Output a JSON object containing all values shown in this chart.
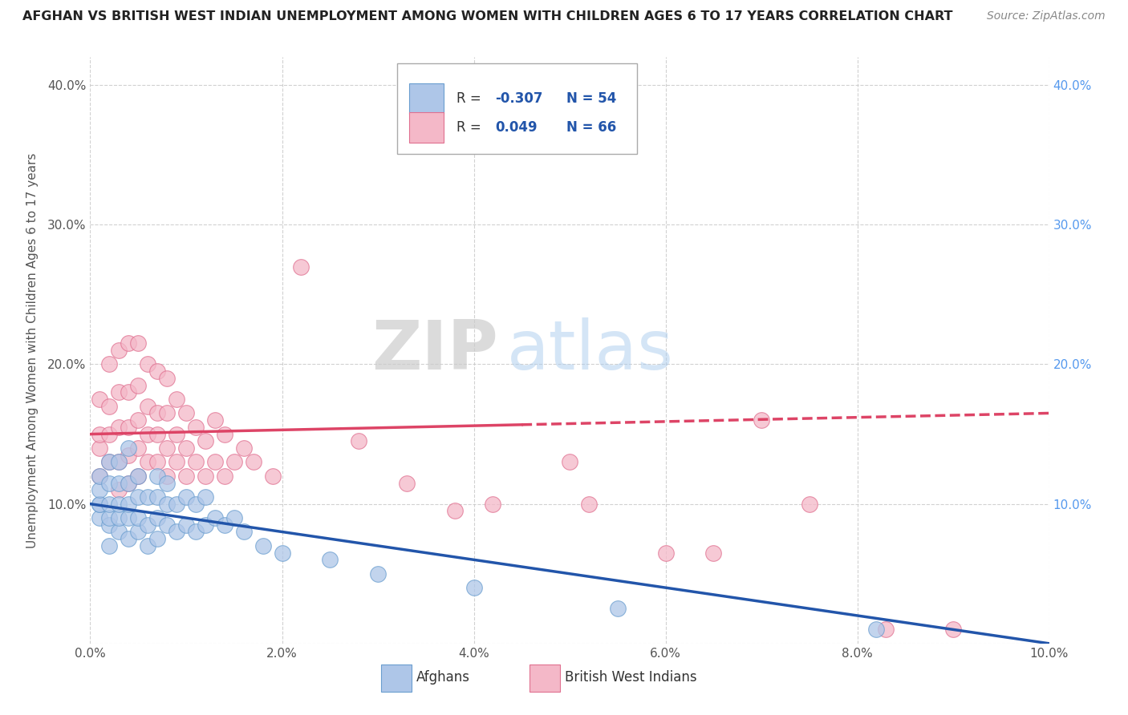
{
  "title": "AFGHAN VS BRITISH WEST INDIAN UNEMPLOYMENT AMONG WOMEN WITH CHILDREN AGES 6 TO 17 YEARS CORRELATION CHART",
  "source": "Source: ZipAtlas.com",
  "ylabel": "Unemployment Among Women with Children Ages 6 to 17 years",
  "xlim": [
    0.0,
    0.1
  ],
  "ylim": [
    0.0,
    0.42
  ],
  "xtick_vals": [
    0.0,
    0.02,
    0.04,
    0.06,
    0.08,
    0.1
  ],
  "xtick_labels": [
    "0.0%",
    "2.0%",
    "4.0%",
    "6.0%",
    "8.0%",
    "10.0%"
  ],
  "ytick_vals": [
    0.0,
    0.1,
    0.2,
    0.3,
    0.4
  ],
  "ytick_labels": [
    "",
    "10.0%",
    "20.0%",
    "30.0%",
    "40.0%"
  ],
  "legend_r_afghan": "-0.307",
  "legend_n_afghan": "54",
  "legend_r_bwi": "0.049",
  "legend_n_bwi": "66",
  "afghan_color": "#aec6e8",
  "afghan_edge": "#6a9ecf",
  "bwi_color": "#f4b8c8",
  "bwi_edge": "#e07090",
  "afghan_line_color": "#2255aa",
  "bwi_line_color": "#dd4466",
  "background_color": "#ffffff",
  "grid_color": "#cccccc",
  "watermark_zip": "ZIP",
  "watermark_atlas": "atlas",
  "afghan_scatter_x": [
    0.001,
    0.001,
    0.001,
    0.001,
    0.001,
    0.002,
    0.002,
    0.002,
    0.002,
    0.002,
    0.002,
    0.003,
    0.003,
    0.003,
    0.003,
    0.003,
    0.004,
    0.004,
    0.004,
    0.004,
    0.004,
    0.005,
    0.005,
    0.005,
    0.005,
    0.006,
    0.006,
    0.006,
    0.007,
    0.007,
    0.007,
    0.007,
    0.008,
    0.008,
    0.008,
    0.009,
    0.009,
    0.01,
    0.01,
    0.011,
    0.011,
    0.012,
    0.012,
    0.013,
    0.014,
    0.015,
    0.016,
    0.018,
    0.02,
    0.025,
    0.03,
    0.04,
    0.055,
    0.082
  ],
  "afghan_scatter_y": [
    0.09,
    0.1,
    0.1,
    0.11,
    0.12,
    0.07,
    0.085,
    0.09,
    0.1,
    0.115,
    0.13,
    0.08,
    0.09,
    0.1,
    0.115,
    0.13,
    0.075,
    0.09,
    0.1,
    0.115,
    0.14,
    0.08,
    0.09,
    0.105,
    0.12,
    0.07,
    0.085,
    0.105,
    0.075,
    0.09,
    0.105,
    0.12,
    0.085,
    0.1,
    0.115,
    0.08,
    0.1,
    0.085,
    0.105,
    0.08,
    0.1,
    0.085,
    0.105,
    0.09,
    0.085,
    0.09,
    0.08,
    0.07,
    0.065,
    0.06,
    0.05,
    0.04,
    0.025,
    0.01
  ],
  "bwi_scatter_x": [
    0.001,
    0.001,
    0.001,
    0.001,
    0.002,
    0.002,
    0.002,
    0.002,
    0.003,
    0.003,
    0.003,
    0.003,
    0.003,
    0.004,
    0.004,
    0.004,
    0.004,
    0.004,
    0.005,
    0.005,
    0.005,
    0.005,
    0.005,
    0.006,
    0.006,
    0.006,
    0.006,
    0.007,
    0.007,
    0.007,
    0.007,
    0.008,
    0.008,
    0.008,
    0.008,
    0.009,
    0.009,
    0.009,
    0.01,
    0.01,
    0.01,
    0.011,
    0.011,
    0.012,
    0.012,
    0.013,
    0.013,
    0.014,
    0.014,
    0.015,
    0.016,
    0.017,
    0.019,
    0.022,
    0.028,
    0.033,
    0.038,
    0.042,
    0.05,
    0.052,
    0.06,
    0.065,
    0.07,
    0.075,
    0.083,
    0.09
  ],
  "bwi_scatter_y": [
    0.12,
    0.14,
    0.15,
    0.175,
    0.13,
    0.15,
    0.17,
    0.2,
    0.11,
    0.13,
    0.155,
    0.18,
    0.21,
    0.115,
    0.135,
    0.155,
    0.18,
    0.215,
    0.12,
    0.14,
    0.16,
    0.185,
    0.215,
    0.13,
    0.15,
    0.17,
    0.2,
    0.13,
    0.15,
    0.165,
    0.195,
    0.12,
    0.14,
    0.165,
    0.19,
    0.13,
    0.15,
    0.175,
    0.12,
    0.14,
    0.165,
    0.13,
    0.155,
    0.12,
    0.145,
    0.13,
    0.16,
    0.12,
    0.15,
    0.13,
    0.14,
    0.13,
    0.12,
    0.27,
    0.145,
    0.115,
    0.095,
    0.1,
    0.13,
    0.1,
    0.065,
    0.065,
    0.16,
    0.1,
    0.01,
    0.01
  ],
  "afghan_trend_x0": 0.0,
  "afghan_trend_x1": 0.1,
  "afghan_trend_y0": 0.1,
  "afghan_trend_y1": 0.0,
  "bwi_trend_x0": 0.0,
  "bwi_trend_x1": 0.1,
  "bwi_trend_y0": 0.15,
  "bwi_trend_y1": 0.165
}
